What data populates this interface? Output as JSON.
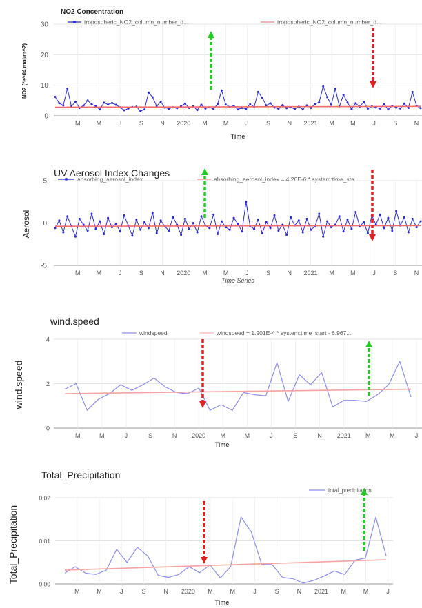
{
  "chart_data": [
    {
      "type": "line",
      "title": "NO2 Concentration",
      "xlabel": "Time",
      "ylabel": "NO2 (*e^04 mol/m^2)",
      "ylim": [
        0,
        30
      ],
      "yticks": [
        "0",
        "10",
        "20",
        "30"
      ],
      "xticks": [
        "M",
        "M",
        "J",
        "S",
        "N",
        "2020",
        "M",
        "M",
        "J",
        "S",
        "N",
        "2021",
        "M",
        "M",
        "J",
        "S",
        "N"
      ],
      "grid": true,
      "legend_position": "top",
      "series": [
        {
          "name": "tropospheric_NO2_column_number_d...",
          "color": "#2a2ad6",
          "values": [
            6.2,
            4.1,
            3.4,
            8.9,
            3.1,
            4.6,
            2.6,
            3.4,
            5.0,
            3.8,
            3.1,
            2.1,
            4.3,
            3.7,
            4.2,
            3.6,
            2.8,
            1.8,
            2.4,
            2.9,
            3.0,
            1.5,
            2.1,
            7.6,
            6.1,
            3.2,
            4.6,
            2.7,
            2.3,
            2.8,
            2.5,
            3.2,
            4.0,
            2.6,
            3.1,
            1.9,
            3.6,
            2.4,
            2.8,
            2.2,
            3.9,
            8.3,
            3.7,
            2.9,
            3.3,
            2.1,
            2.6,
            2.3,
            3.8,
            2.9,
            7.8,
            5.9,
            3.4,
            4.1,
            2.7,
            2.3,
            3.5,
            2.5,
            2.8,
            2.2,
            3.0,
            2.1,
            3.4,
            2.6,
            3.9,
            4.4,
            9.6,
            6.1,
            3.6,
            8.9,
            3.1,
            6.9,
            4.3,
            2.2,
            4.1,
            3.0,
            4.6,
            2.3,
            3.1,
            2.7,
            2.4,
            3.8,
            2.1,
            3.2,
            2.7,
            2.4,
            4.0,
            2.6,
            7.8,
            3.3,
            2.5
          ]
        },
        {
          "name": "tropospheric_NO2_column_number_d...",
          "color": "#f06a6a",
          "values": [
            2.8,
            3.1
          ]
        }
      ],
      "annotations": [
        {
          "type": "arrow",
          "direction": "up",
          "color": "#22cc22",
          "x_tick": "2020 M"
        },
        {
          "type": "arrow",
          "direction": "down",
          "color": "#e02020",
          "x_tick": "2021 J"
        }
      ]
    },
    {
      "type": "line",
      "title": "UV Aerosol Index Changes",
      "xlabel": "Time Series",
      "ylabel": "Aerosol",
      "ylim": [
        -5,
        5
      ],
      "yticks": [
        "5",
        "0",
        "-5"
      ],
      "xticks": [
        "M",
        "M",
        "J",
        "S",
        "N",
        "2020",
        "M",
        "M",
        "J",
        "S",
        "N",
        "2021",
        "M",
        "M",
        "J",
        "S",
        "N"
      ],
      "grid": true,
      "legend_position": "top",
      "series": [
        {
          "name": "absorbing_aerosol_index",
          "color": "#2a2ad6",
          "values": [
            -0.6,
            0.3,
            -1.1,
            0.8,
            -0.4,
            -1.6,
            0.5,
            -0.2,
            -0.9,
            1.1,
            -0.7,
            0.2,
            -1.3,
            0.6,
            -0.5,
            -0.1,
            -1.0,
            0.9,
            -0.3,
            -1.5,
            0.4,
            -0.8,
            0.1,
            -0.6,
            1.2,
            -1.2,
            0.3,
            -0.4,
            -0.9,
            0.7,
            -0.2,
            -1.4,
            0.5,
            -0.7,
            0.0,
            -1.1,
            0.8,
            -0.3,
            -0.6,
            1.0,
            -1.3,
            0.2,
            -0.5,
            -0.8,
            0.6,
            -0.1,
            -1.0,
            2.5,
            -0.4,
            -0.7,
            0.4,
            -1.2,
            0.1,
            -0.6,
            0.9,
            -0.9,
            -0.2,
            -1.4,
            0.7,
            -0.3,
            0.3,
            -1.1,
            0.5,
            -0.8,
            -0.4,
            1.1,
            -1.6,
            0.2,
            -0.5,
            -0.2,
            0.8,
            -1.0,
            0.4,
            -0.7,
            1.3,
            -0.4,
            0.1,
            -1.2,
            0.9,
            -0.2,
            1.0,
            -0.6,
            0.6,
            -0.9,
            1.4,
            -0.3,
            0.7,
            -1.1,
            0.5,
            -0.5,
            0.2
          ]
        },
        {
          "name": "absorbing_aerosol_index = 4.26E-6 * system:time_sta...",
          "color": "#f06a6a",
          "values": [
            -0.38,
            -0.32
          ]
        }
      ],
      "annotations": [
        {
          "type": "arrow",
          "direction": "up",
          "color": "#22cc22",
          "x_tick": "2020 M"
        },
        {
          "type": "arrow",
          "direction": "down",
          "color": "#e02020",
          "x_tick": "2021 J"
        }
      ]
    },
    {
      "type": "line",
      "title": "wind.speed",
      "xlabel": "Time",
      "ylabel": "wind.speed",
      "ylim": [
        0,
        4
      ],
      "yticks": [
        "0",
        "2",
        "4"
      ],
      "xticks": [
        "M",
        "M",
        "J",
        "S",
        "N",
        "2020",
        "M",
        "M",
        "J",
        "S",
        "N",
        "2021",
        "M",
        "M",
        "J"
      ],
      "grid": true,
      "legend_position": "top",
      "series": [
        {
          "name": "windspeed",
          "color": "#8c8cf0",
          "values": [
            1.75,
            2.0,
            0.8,
            1.3,
            1.55,
            1.95,
            1.7,
            1.95,
            2.25,
            1.85,
            1.6,
            1.55,
            1.8,
            0.8,
            1.05,
            0.8,
            1.6,
            1.5,
            1.45,
            2.95,
            1.2,
            2.4,
            1.95,
            2.5,
            0.95,
            1.25,
            1.25,
            1.2,
            1.5,
            1.95,
            3.0,
            1.4
          ]
        },
        {
          "name": "windspeed = 1.901E-4 * system:time_start - 6.967...",
          "color": "#f7a3a3",
          "values": [
            1.55,
            1.75
          ]
        }
      ],
      "annotations": [
        {
          "type": "arrow",
          "direction": "down",
          "color": "#e02020",
          "x_tick": "2020 M"
        },
        {
          "type": "arrow",
          "direction": "up",
          "color": "#22cc22",
          "x_tick": "2021 J"
        }
      ]
    },
    {
      "type": "line",
      "title": "Total_Precipitation",
      "xlabel": "Time",
      "ylabel": "Total_Precipitation",
      "ylim": [
        0,
        0.02
      ],
      "yticks": [
        "0.00",
        "0.01",
        "0.02"
      ],
      "xticks": [
        "M",
        "M",
        "J",
        "S",
        "N",
        "2020",
        "M",
        "M",
        "J",
        "S",
        "N",
        "2021",
        "M",
        "M",
        "J"
      ],
      "grid": true,
      "legend_position": "top-right",
      "series": [
        {
          "name": "total_precipitation",
          "color": "#8c8cf0",
          "values": [
            0.0025,
            0.004,
            0.0025,
            0.0022,
            0.0032,
            0.008,
            0.005,
            0.0085,
            0.0065,
            0.002,
            0.0015,
            0.0022,
            0.004,
            0.0026,
            0.0044,
            0.0014,
            0.004,
            0.0155,
            0.012,
            0.0045,
            0.0045,
            0.0015,
            0.0012,
            0.0002,
            0.0008,
            0.0018,
            0.003,
            0.0022,
            0.0055,
            0.006,
            0.0155,
            0.0065
          ]
        },
        {
          "name": "",
          "color": "#f7a3a3",
          "values": [
            0.0032,
            0.0056
          ]
        }
      ],
      "annotations": [
        {
          "type": "arrow",
          "direction": "down",
          "color": "#e02020",
          "x_tick": "2020 M"
        },
        {
          "type": "arrow",
          "direction": "up",
          "color": "#22cc22",
          "x_tick": "2021 J"
        }
      ]
    }
  ]
}
